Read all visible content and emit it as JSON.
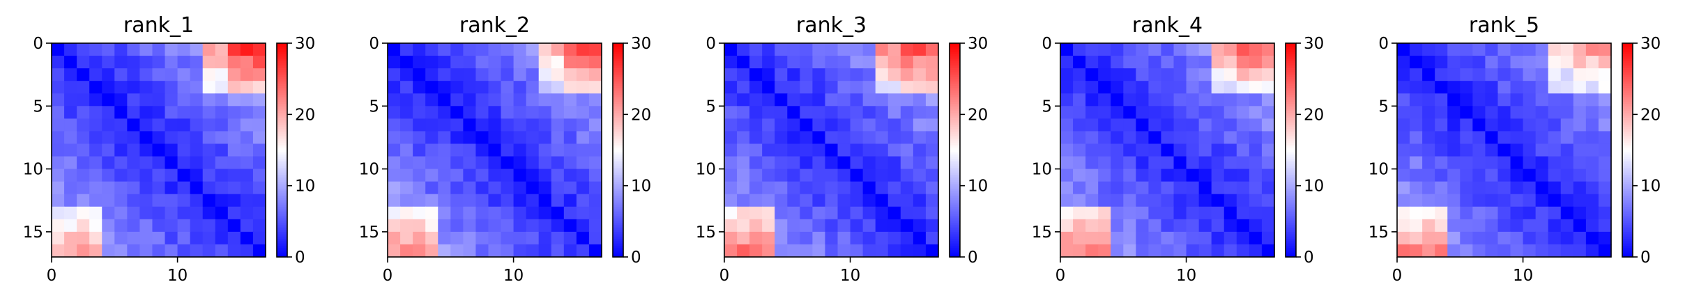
{
  "chart_data": {
    "type": "heatmap",
    "grid_size": 17,
    "colormap": {
      "name": "bwr",
      "stops": [
        "#0000ff",
        "#ffffff",
        "#ff0000"
      ]
    },
    "vmin": 0,
    "vmax": 30,
    "x_ticks": [
      0,
      10
    ],
    "y_ticks": [
      0,
      5,
      10,
      15
    ],
    "colorbar_ticks": [
      0,
      10,
      20,
      30
    ],
    "grid": false,
    "panels": [
      {
        "title": "rank_1",
        "edge_near": 20,
        "edge_far": 27,
        "bottom_left": 22
      },
      {
        "title": "rank_2",
        "edge_near": 19,
        "edge_far": 25,
        "bottom_left": 23
      },
      {
        "title": "rank_3",
        "edge_near": 22,
        "edge_far": 25,
        "bottom_left": 25
      },
      {
        "title": "rank_4",
        "edge_near": 20,
        "edge_far": 24,
        "bottom_left": 25
      },
      {
        "title": "rank_5",
        "edge_near": 18,
        "edge_far": 21,
        "bottom_left": 24
      }
    ]
  }
}
